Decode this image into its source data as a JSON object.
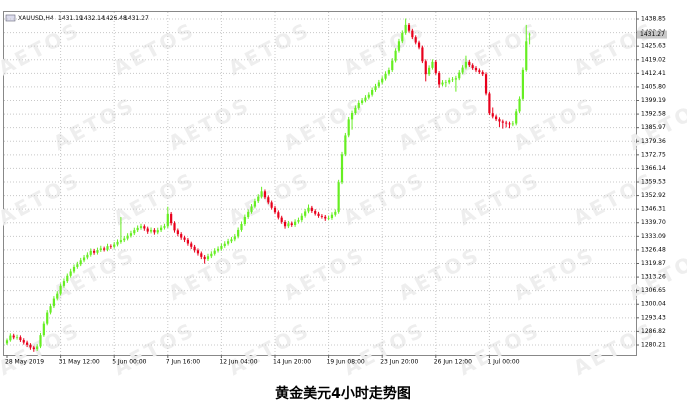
{
  "chart_data": {
    "type": "candlestick",
    "symbol": "XAUUSD,H4",
    "title": "黄金美元4小时走势图",
    "watermark": "AETOS",
    "up_color": "#66ee22",
    "down_color": "#e8001c",
    "grid": true,
    "ylim": [
      1275.34,
      1442.26
    ],
    "yticks": [
      1438.85,
      1432.24,
      1425.63,
      1419.02,
      1412.41,
      {
        "value": 1405.8,
        "label": "1405.80"
      },
      1399.19,
      1392.58,
      1385.97,
      1379.36,
      1372.75,
      1366.14,
      1359.53,
      1352.92,
      1346.31,
      {
        "value": 1339.7,
        "label": "1339.70"
      },
      1333.09,
      1326.48,
      1319.87,
      1313.26,
      1306.65,
      1300.04,
      1293.43,
      1286.82,
      1280.21
    ],
    "categories": [
      "28 May 2019",
      null,
      null,
      null,
      null,
      null,
      null,
      null,
      null,
      null,
      null,
      null,
      null,
      null,
      null,
      null,
      "31 May 12:00",
      null,
      null,
      null,
      null,
      null,
      null,
      null,
      null,
      null,
      null,
      null,
      null,
      null,
      null,
      null,
      "5 Jun 00:00",
      null,
      null,
      null,
      null,
      null,
      null,
      null,
      null,
      null,
      null,
      null,
      null,
      null,
      null,
      null,
      "7 Jun 16:00",
      null,
      null,
      null,
      null,
      null,
      null,
      null,
      null,
      null,
      null,
      null,
      null,
      null,
      null,
      null,
      "12 Jun 04:00",
      null,
      null,
      null,
      null,
      null,
      null,
      null,
      null,
      null,
      null,
      null,
      null,
      null,
      null,
      null,
      "14 Jun 20:00",
      null,
      null,
      null,
      null,
      null,
      null,
      null,
      null,
      null,
      null,
      null,
      null,
      null,
      null,
      null,
      "19 Jun 08:00",
      null,
      null,
      null,
      null,
      null,
      null,
      null,
      null,
      null,
      null,
      null,
      null,
      null,
      null,
      null,
      "23 Jun 20:00",
      null,
      null,
      null,
      null,
      null,
      null,
      null,
      null,
      null,
      null,
      null,
      null,
      null,
      null,
      null,
      "26 Jun 12:00",
      null,
      null,
      null,
      null,
      null,
      null,
      null,
      null,
      null,
      null,
      null,
      null,
      null,
      null,
      null,
      "1 Jul 00:00",
      null,
      null,
      null,
      null,
      null,
      null,
      null,
      null,
      null,
      null,
      null,
      null
    ],
    "ohlc": [
      [
        1281.0,
        1283.4,
        1280.2,
        1282.5
      ],
      [
        1282.5,
        1285.9,
        1281.8,
        1284.8
      ],
      [
        1284.8,
        1285.7,
        1283.0,
        1283.9
      ],
      [
        1283.9,
        1285.2,
        1282.8,
        1284.0
      ],
      [
        1284.0,
        1284.9,
        1281.7,
        1282.6
      ],
      [
        1282.6,
        1283.5,
        1280.4,
        1281.4
      ],
      [
        1281.4,
        1282.3,
        1279.2,
        1280.3
      ],
      [
        1280.3,
        1281.1,
        1277.9,
        1279.0
      ],
      [
        1279.0,
        1279.8,
        1276.9,
        1278.2
      ],
      [
        1278.2,
        1280.6,
        1277.3,
        1279.5
      ],
      [
        1279.5,
        1286.1,
        1278.7,
        1285.0
      ],
      [
        1285.0,
        1291.7,
        1284.2,
        1290.6
      ],
      [
        1290.6,
        1297.2,
        1289.8,
        1296.0
      ],
      [
        1296.0,
        1300.3,
        1295.1,
        1299.1
      ],
      [
        1299.1,
        1304.0,
        1298.2,
        1302.8
      ],
      [
        1302.8,
        1306.4,
        1301.9,
        1305.2
      ],
      [
        1305.2,
        1310.2,
        1304.3,
        1309.0
      ],
      [
        1309.0,
        1312.6,
        1308.1,
        1311.3
      ],
      [
        1311.3,
        1315.0,
        1310.4,
        1313.9
      ],
      [
        1313.9,
        1317.3,
        1313.0,
        1316.0
      ],
      [
        1316.0,
        1319.4,
        1315.1,
        1318.2
      ],
      [
        1318.2,
        1320.7,
        1317.3,
        1319.5
      ],
      [
        1319.5,
        1322.6,
        1318.6,
        1321.4
      ],
      [
        1321.4,
        1324.0,
        1320.5,
        1322.8
      ],
      [
        1322.8,
        1325.3,
        1321.9,
        1324.1
      ],
      [
        1324.1,
        1327.2,
        1323.2,
        1326.0
      ],
      [
        1326.0,
        1327.0,
        1324.1,
        1325.1
      ],
      [
        1325.1,
        1327.6,
        1324.2,
        1326.4
      ],
      [
        1326.4,
        1328.5,
        1325.5,
        1327.2
      ],
      [
        1327.2,
        1328.1,
        1325.7,
        1326.6
      ],
      [
        1326.6,
        1329.5,
        1325.8,
        1328.3
      ],
      [
        1328.3,
        1329.2,
        1327.0,
        1328.0
      ],
      [
        1328.0,
        1330.3,
        1327.1,
        1329.1
      ],
      [
        1329.1,
        1331.6,
        1328.2,
        1330.4
      ],
      [
        1330.4,
        1342.5,
        1329.5,
        1331.2
      ],
      [
        1331.2,
        1333.2,
        1330.3,
        1332.0
      ],
      [
        1332.0,
        1334.6,
        1331.1,
        1333.4
      ],
      [
        1333.4,
        1335.8,
        1332.5,
        1334.6
      ],
      [
        1334.6,
        1337.3,
        1333.7,
        1336.1
      ],
      [
        1336.1,
        1338.4,
        1335.2,
        1337.2
      ],
      [
        1337.2,
        1339.2,
        1336.3,
        1338.0
      ],
      [
        1338.0,
        1338.9,
        1335.8,
        1336.9
      ],
      [
        1336.9,
        1337.8,
        1334.3,
        1335.4
      ],
      [
        1335.4,
        1337.4,
        1334.5,
        1336.2
      ],
      [
        1336.2,
        1337.1,
        1333.9,
        1335.0
      ],
      [
        1335.0,
        1337.3,
        1334.1,
        1336.1
      ],
      [
        1336.1,
        1338.5,
        1335.2,
        1337.3
      ],
      [
        1337.3,
        1339.2,
        1336.4,
        1338.0
      ],
      [
        1338.0,
        1347.5,
        1337.1,
        1344.0
      ],
      [
        1344.0,
        1344.9,
        1338.4,
        1339.5
      ],
      [
        1339.5,
        1340.4,
        1334.9,
        1336.0
      ],
      [
        1336.0,
        1336.9,
        1333.1,
        1334.2
      ],
      [
        1334.2,
        1335.1,
        1331.4,
        1332.5
      ],
      [
        1332.5,
        1333.4,
        1330.3,
        1331.4
      ],
      [
        1331.4,
        1332.3,
        1328.5,
        1329.6
      ],
      [
        1329.6,
        1330.5,
        1326.9,
        1328.0
      ],
      [
        1328.0,
        1328.9,
        1325.2,
        1326.3
      ],
      [
        1326.3,
        1327.2,
        1323.7,
        1324.8
      ],
      [
        1324.8,
        1325.7,
        1322.0,
        1323.1
      ],
      [
        1323.1,
        1324.0,
        1319.8,
        1322.0
      ],
      [
        1322.0,
        1324.6,
        1321.1,
        1323.4
      ],
      [
        1323.4,
        1325.8,
        1322.5,
        1324.6
      ],
      [
        1324.6,
        1327.3,
        1323.7,
        1326.1
      ],
      [
        1326.1,
        1328.2,
        1325.2,
        1327.0
      ],
      [
        1327.0,
        1329.6,
        1326.1,
        1328.4
      ],
      [
        1328.4,
        1330.7,
        1327.5,
        1329.5
      ],
      [
        1329.5,
        1331.9,
        1328.6,
        1330.7
      ],
      [
        1330.7,
        1332.8,
        1329.8,
        1331.6
      ],
      [
        1331.6,
        1334.2,
        1330.7,
        1333.0
      ],
      [
        1333.0,
        1337.4,
        1332.1,
        1336.2
      ],
      [
        1336.2,
        1340.3,
        1335.3,
        1339.1
      ],
      [
        1339.1,
        1343.7,
        1338.2,
        1342.5
      ],
      [
        1342.5,
        1346.2,
        1341.6,
        1345.0
      ],
      [
        1345.0,
        1348.8,
        1344.1,
        1347.6
      ],
      [
        1347.6,
        1351.4,
        1346.7,
        1350.2
      ],
      [
        1350.2,
        1353.6,
        1349.3,
        1352.4
      ],
      [
        1352.4,
        1357.2,
        1351.5,
        1355.0
      ],
      [
        1355.0,
        1355.9,
        1351.2,
        1352.1
      ],
      [
        1352.1,
        1353.0,
        1348.7,
        1349.6
      ],
      [
        1349.6,
        1350.5,
        1346.1,
        1347.0
      ],
      [
        1347.0,
        1347.9,
        1343.9,
        1344.8
      ],
      [
        1344.8,
        1345.7,
        1341.3,
        1342.2
      ],
      [
        1342.2,
        1343.1,
        1339.2,
        1340.1
      ],
      [
        1340.1,
        1341.0,
        1336.8,
        1338.0
      ],
      [
        1338.0,
        1340.6,
        1337.1,
        1339.4
      ],
      [
        1339.4,
        1340.3,
        1337.7,
        1338.6
      ],
      [
        1338.6,
        1341.4,
        1337.7,
        1340.2
      ],
      [
        1340.2,
        1342.2,
        1339.3,
        1341.0
      ],
      [
        1341.0,
        1344.3,
        1340.1,
        1343.1
      ],
      [
        1343.1,
        1346.4,
        1342.2,
        1345.2
      ],
      [
        1345.2,
        1348.6,
        1344.3,
        1347.0
      ],
      [
        1347.0,
        1347.9,
        1344.5,
        1345.4
      ],
      [
        1345.4,
        1346.3,
        1343.2,
        1344.1
      ],
      [
        1344.1,
        1345.0,
        1342.1,
        1343.0
      ],
      [
        1343.0,
        1343.9,
        1341.7,
        1342.6
      ],
      [
        1342.6,
        1343.5,
        1340.6,
        1341.8
      ],
      [
        1341.8,
        1343.2,
        1340.9,
        1342.0
      ],
      [
        1342.0,
        1344.8,
        1341.1,
        1343.6
      ],
      [
        1343.6,
        1346.2,
        1342.7,
        1345.0
      ],
      [
        1345.0,
        1360.6,
        1344.1,
        1359.4
      ],
      [
        1359.4,
        1374.2,
        1358.5,
        1373.0
      ],
      [
        1373.0,
        1383.4,
        1372.1,
        1382.2
      ],
      [
        1382.2,
        1391.2,
        1381.3,
        1390.0
      ],
      [
        1390.0,
        1394.3,
        1385.0,
        1393.1
      ],
      [
        1393.1,
        1396.8,
        1392.2,
        1395.6
      ],
      [
        1395.6,
        1399.2,
        1394.7,
        1398.0
      ],
      [
        1398.0,
        1400.4,
        1397.1,
        1399.2
      ],
      [
        1399.2,
        1401.8,
        1398.3,
        1400.6
      ],
      [
        1400.6,
        1403.2,
        1399.7,
        1402.0
      ],
      [
        1402.0,
        1405.5,
        1401.1,
        1404.3
      ],
      [
        1404.3,
        1407.3,
        1403.4,
        1406.1
      ],
      [
        1406.1,
        1409.2,
        1405.2,
        1408.0
      ],
      [
        1408.0,
        1411.0,
        1407.1,
        1409.8
      ],
      [
        1409.8,
        1413.4,
        1408.9,
        1412.2
      ],
      [
        1412.2,
        1415.2,
        1411.3,
        1414.0
      ],
      [
        1414.0,
        1419.8,
        1413.1,
        1418.6
      ],
      [
        1418.6,
        1424.6,
        1417.7,
        1423.4
      ],
      [
        1423.4,
        1429.2,
        1422.5,
        1428.0
      ],
      [
        1428.0,
        1433.3,
        1427.1,
        1432.1
      ],
      [
        1432.1,
        1439.1,
        1431.2,
        1436.0
      ],
      [
        1436.0,
        1436.9,
        1432.3,
        1433.2
      ],
      [
        1433.2,
        1434.1,
        1429.1,
        1430.0
      ],
      [
        1430.0,
        1430.9,
        1426.5,
        1427.4
      ],
      [
        1427.4,
        1428.3,
        1424.1,
        1425.0
      ],
      [
        1425.0,
        1425.9,
        1417.4,
        1418.3
      ],
      [
        1418.3,
        1419.2,
        1408.5,
        1412.0
      ],
      [
        1412.0,
        1416.3,
        1411.1,
        1415.1
      ],
      [
        1415.1,
        1419.2,
        1414.2,
        1418.0
      ],
      [
        1418.0,
        1418.9,
        1411.7,
        1412.6
      ],
      [
        1412.6,
        1413.5,
        1405.4,
        1407.0
      ],
      [
        1407.0,
        1409.1,
        1406.1,
        1407.9
      ],
      [
        1407.9,
        1409.2,
        1405.8,
        1408.0
      ],
      [
        1408.0,
        1410.3,
        1407.1,
        1409.1
      ],
      [
        1409.1,
        1410.6,
        1408.2,
        1409.4
      ],
      [
        1409.4,
        1411.2,
        1403.5,
        1410.0
      ],
      [
        1410.0,
        1414.0,
        1409.1,
        1412.8
      ],
      [
        1412.8,
        1416.4,
        1411.9,
        1415.2
      ],
      [
        1415.2,
        1421.0,
        1414.3,
        1418.0
      ],
      [
        1418.0,
        1418.9,
        1415.5,
        1416.4
      ],
      [
        1416.4,
        1417.3,
        1414.1,
        1415.0
      ],
      [
        1415.0,
        1415.9,
        1413.0,
        1413.9
      ],
      [
        1413.9,
        1414.8,
        1412.1,
        1413.0
      ],
      [
        1413.0,
        1413.9,
        1411.1,
        1412.0
      ],
      [
        1412.0,
        1412.9,
        1401.7,
        1402.6
      ],
      [
        1402.6,
        1403.5,
        1392.1,
        1393.0
      ],
      [
        1393.0,
        1395.8,
        1390.5,
        1391.4
      ],
      [
        1391.4,
        1392.3,
        1389.2,
        1390.1
      ],
      [
        1390.1,
        1391.0,
        1386.3,
        1389.0
      ],
      [
        1389.0,
        1389.9,
        1385.5,
        1388.4
      ],
      [
        1388.4,
        1389.3,
        1386.1,
        1388.0
      ],
      [
        1388.0,
        1388.9,
        1385.7,
        1387.6
      ],
      [
        1387.6,
        1389.2,
        1386.7,
        1388.0
      ],
      [
        1388.0,
        1395.1,
        1387.1,
        1393.9
      ],
      [
        1393.9,
        1401.2,
        1393.0,
        1400.0
      ],
      [
        1400.0,
        1415.3,
        1399.1,
        1414.1
      ],
      [
        1414.0,
        1436.0,
        1413.2,
        1428.0
      ],
      [
        1431.19,
        1432.14,
        1426.48,
        1431.27
      ]
    ]
  }
}
